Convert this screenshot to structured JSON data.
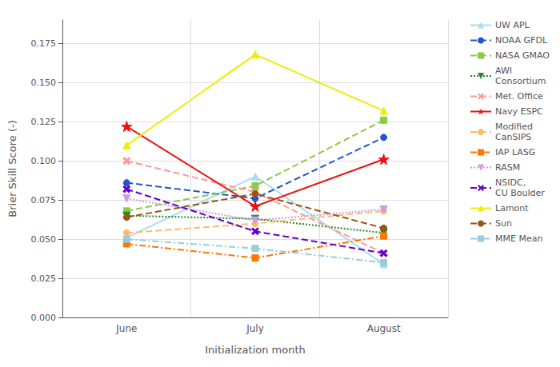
{
  "chart_data": {
    "type": "line",
    "categories": [
      "June",
      "July",
      "August"
    ],
    "series": [
      {
        "name": "UW APL",
        "color": "#aaddee",
        "line_style": "solid",
        "marker": "triangle_up",
        "values": [
          0.051,
          0.09,
          0.034
        ]
      },
      {
        "name": "NOAA GFDL",
        "color": "#2255cc",
        "line_style": "dashed",
        "marker": "circle",
        "values": [
          0.086,
          0.076,
          0.115
        ]
      },
      {
        "name": "NASA GMAO",
        "color": "#88cc44",
        "line_style": "dashed",
        "marker": "square",
        "values": [
          0.068,
          0.084,
          0.126
        ]
      },
      {
        "name": "AWI\nConsortium",
        "color": "#228B22",
        "line_style": "dotted",
        "marker": "triangle_down",
        "values": [
          0.065,
          0.063,
          0.054
        ]
      },
      {
        "name": "Met. Office",
        "color": "#FF9999",
        "line_style": "dashed",
        "marker": "x",
        "values": [
          0.1,
          0.08,
          0.041
        ]
      },
      {
        "name": "Navy ESPC",
        "color": "#EE1111",
        "line_style": "solid",
        "marker": "star",
        "values": [
          0.122,
          0.071,
          0.101
        ]
      },
      {
        "name": "Modified\nCanSIPS",
        "color": "#FFBB66",
        "line_style": "dashed",
        "marker": "circle",
        "values": [
          0.054,
          0.06,
          0.068
        ]
      },
      {
        "name": "IAP LASG",
        "color": "#FF7700",
        "line_style": "dashdot",
        "marker": "square",
        "values": [
          0.047,
          0.038,
          0.052
        ]
      },
      {
        "name": "RASM",
        "color": "#CC99EE",
        "line_style": "dotted",
        "marker": "triangle_down",
        "values": [
          0.076,
          0.062,
          0.069
        ]
      },
      {
        "name": "NSIDC,\nCU Boulder",
        "color": "#6600CC",
        "line_style": "dashed",
        "marker": "x",
        "values": [
          0.082,
          0.055,
          0.041
        ]
      },
      {
        "name": "Lamont",
        "color": "#EEEE00",
        "line_style": "solid",
        "marker": "triangle_up",
        "values": [
          0.11,
          0.168,
          0.132
        ]
      },
      {
        "name": "Sun",
        "color": "#995511",
        "line_style": "dashed",
        "marker": "circle",
        "values": [
          0.064,
          0.079,
          0.057
        ]
      },
      {
        "name": "MME Mean",
        "color": "#99CCDD",
        "line_style": "dashdot",
        "marker": "square",
        "values": [
          0.05,
          0.044,
          0.035
        ]
      }
    ],
    "xlabel": "Initialization month",
    "ylabel": "Brier Skill Score (-)",
    "ylim": [
      0.0,
      0.19
    ],
    "yticks": [
      {
        "value": 0.0,
        "label": "0.000"
      },
      {
        "value": 0.025,
        "label": "0.025"
      },
      {
        "value": 0.05,
        "label": "0.050"
      },
      {
        "value": 0.075,
        "label": "0.075"
      },
      {
        "value": 0.1,
        "label": "0.100"
      },
      {
        "value": 0.125,
        "label": "0.125"
      },
      {
        "value": 0.15,
        "label": "0.150"
      },
      {
        "value": 0.175,
        "label": "0.175"
      }
    ],
    "grid": true,
    "legend": "right"
  }
}
